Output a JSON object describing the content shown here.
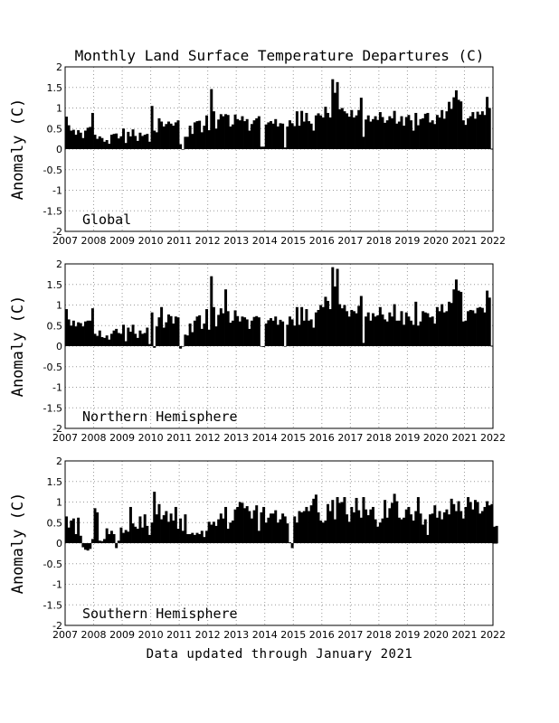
{
  "title": "Monthly Land Surface Temperature Departures (C)",
  "footer": "Data updated through January 2021",
  "chart_data": [
    {
      "type": "bar",
      "region_label": "Global",
      "ylabel": "Anomaly (C)",
      "ylim": [
        -2,
        2
      ],
      "xlim": [
        2007,
        2022
      ],
      "yticks": [
        "2",
        "1.5",
        "1",
        "0.5",
        "0",
        "-0.5",
        "-1",
        "-1.5",
        "-2"
      ],
      "xticks": [
        "2007",
        "2008",
        "2009",
        "2010",
        "2011",
        "2012",
        "2013",
        "2014",
        "2015",
        "2016",
        "2017",
        "2018",
        "2019",
        "2020",
        "2021",
        "2022"
      ],
      "grid": true,
      "x_start": "2007-01",
      "frequency": "monthly",
      "values": [
        0.79,
        0.58,
        0.45,
        0.47,
        0.35,
        0.46,
        0.4,
        0.27,
        0.45,
        0.52,
        0.54,
        0.88,
        0.35,
        0.25,
        0.31,
        0.27,
        0.18,
        0.22,
        0.13,
        0.35,
        0.37,
        0.38,
        0.26,
        0.31,
        0.5,
        0.15,
        0.42,
        0.31,
        0.48,
        0.32,
        0.2,
        0.4,
        0.32,
        0.35,
        0.37,
        0.18,
        1.05,
        0.45,
        0.41,
        0.75,
        0.67,
        0.55,
        0.61,
        0.67,
        0.62,
        0.57,
        0.65,
        0.7,
        0.12,
        0.0,
        0.3,
        0.3,
        0.57,
        0.37,
        0.65,
        0.68,
        0.69,
        0.41,
        0.57,
        0.82,
        0.46,
        1.46,
        0.92,
        0.5,
        0.72,
        0.85,
        0.8,
        0.85,
        0.83,
        0.55,
        0.6,
        0.84,
        0.73,
        0.7,
        0.8,
        0.68,
        0.73,
        0.45,
        0.61,
        0.7,
        0.75,
        0.8,
        0.06,
        0.06,
        0.6,
        0.65,
        0.68,
        0.62,
        0.73,
        0.55,
        0.63,
        0.62,
        0.04,
        0.55,
        0.7,
        0.63,
        0.56,
        0.92,
        0.57,
        0.93,
        0.67,
        0.88,
        0.68,
        0.62,
        0.45,
        0.82,
        0.87,
        0.82,
        0.77,
        1.03,
        0.88,
        0.77,
        1.7,
        1.37,
        1.63,
        0.97,
        1.0,
        0.92,
        0.87,
        0.79,
        0.95,
        0.77,
        0.82,
        0.95,
        1.25,
        0.3,
        0.72,
        0.82,
        0.67,
        0.73,
        0.8,
        0.71,
        0.9,
        0.78,
        0.64,
        0.7,
        0.8,
        0.75,
        0.93,
        0.62,
        0.67,
        0.8,
        0.57,
        0.78,
        0.83,
        0.7,
        0.45,
        0.88,
        0.58,
        0.73,
        0.75,
        0.86,
        0.88,
        0.65,
        0.7,
        0.61,
        0.83,
        0.77,
        0.95,
        0.74,
        0.92,
        1.15,
        0.98,
        1.26,
        1.43,
        1.2,
        1.16,
        0.7,
        0.59,
        0.75,
        0.8,
        0.9,
        0.74,
        0.91,
        0.84,
        0.92,
        0.83,
        1.27,
        1.0
      ]
    },
    {
      "type": "bar",
      "region_label": "Northern Hemisphere",
      "ylabel": "Anomaly (C)",
      "ylim": [
        -2,
        2
      ],
      "xlim": [
        2007,
        2022
      ],
      "yticks": [
        "2",
        "1.5",
        "1",
        "0.5",
        "0",
        "-0.5",
        "-1",
        "-1.5",
        "-2"
      ],
      "xticks": [
        "2007",
        "2008",
        "2009",
        "2010",
        "2011",
        "2012",
        "2013",
        "2014",
        "2015",
        "2016",
        "2017",
        "2018",
        "2019",
        "2020",
        "2021",
        "2022"
      ],
      "grid": true,
      "x_start": "2007-01",
      "frequency": "monthly",
      "values": [
        0.9,
        0.65,
        0.5,
        0.62,
        0.48,
        0.58,
        0.56,
        0.48,
        0.6,
        0.62,
        0.62,
        0.92,
        0.3,
        0.25,
        0.38,
        0.22,
        0.2,
        0.26,
        0.16,
        0.3,
        0.38,
        0.42,
        0.32,
        0.3,
        0.52,
        0.12,
        0.45,
        0.35,
        0.52,
        0.3,
        0.2,
        0.38,
        0.3,
        0.32,
        0.45,
        0.05,
        0.82,
        -0.04,
        0.48,
        0.7,
        0.95,
        0.45,
        0.58,
        0.77,
        0.73,
        0.55,
        0.72,
        0.7,
        -0.06,
        0.0,
        0.28,
        0.26,
        0.55,
        0.34,
        0.62,
        0.72,
        0.75,
        0.42,
        0.55,
        0.9,
        0.4,
        1.7,
        0.95,
        0.48,
        0.76,
        0.92,
        0.8,
        1.38,
        0.85,
        0.57,
        0.62,
        0.87,
        0.73,
        0.6,
        0.72,
        0.7,
        0.65,
        0.42,
        0.62,
        0.71,
        0.73,
        0.7,
        0.0,
        -0.02,
        0.55,
        0.63,
        0.68,
        0.62,
        0.72,
        0.52,
        0.64,
        0.6,
        0.0,
        0.52,
        0.72,
        0.65,
        0.5,
        0.95,
        0.52,
        0.95,
        0.62,
        0.9,
        0.62,
        0.65,
        0.45,
        0.82,
        0.88,
        1.0,
        0.95,
        1.2,
        1.1,
        0.9,
        1.92,
        1.45,
        1.88,
        1.02,
        0.92,
        1.0,
        0.85,
        0.72,
        0.88,
        0.85,
        0.8,
        0.98,
        1.22,
        0.08,
        0.72,
        0.82,
        0.62,
        0.8,
        0.72,
        0.75,
        0.95,
        0.77,
        0.65,
        0.6,
        0.82,
        0.72,
        1.02,
        0.62,
        0.62,
        0.85,
        0.52,
        0.82,
        0.72,
        0.62,
        0.52,
        1.08,
        0.5,
        0.6,
        0.85,
        0.82,
        0.8,
        0.7,
        0.72,
        0.55,
        0.95,
        0.85,
        1.02,
        0.82,
        0.85,
        1.08,
        1.05,
        1.38,
        1.62,
        1.35,
        1.32,
        0.6,
        0.62,
        0.85,
        0.88,
        0.87,
        0.8,
        0.93,
        0.95,
        0.93,
        0.82,
        1.35,
        1.18
      ]
    },
    {
      "type": "bar",
      "region_label": "Southern Hemisphere",
      "ylabel": "Anomaly (C)",
      "ylim": [
        -2,
        2
      ],
      "xlim": [
        2007,
        2022
      ],
      "yticks": [
        "2",
        "1.5",
        "1",
        "0.5",
        "0",
        "-0.5",
        "-1",
        "-1.5",
        "-2"
      ],
      "xticks": [
        "2007",
        "2008",
        "2009",
        "2010",
        "2011",
        "2012",
        "2013",
        "2014",
        "2015",
        "2016",
        "2017",
        "2018",
        "2019",
        "2020",
        "2021",
        "2022"
      ],
      "grid": true,
      "x_start": "2007-01",
      "frequency": "monthly",
      "values": [
        0.65,
        0.38,
        0.55,
        0.6,
        0.22,
        0.62,
        0.18,
        -0.1,
        -0.16,
        -0.18,
        -0.14,
        0.1,
        0.85,
        0.75,
        0.06,
        0.05,
        0.1,
        0.36,
        0.22,
        0.3,
        0.22,
        -0.12,
        0.06,
        0.38,
        0.25,
        0.32,
        0.28,
        0.88,
        0.48,
        0.4,
        0.35,
        0.65,
        0.38,
        0.7,
        0.42,
        0.2,
        0.5,
        1.25,
        0.7,
        0.95,
        0.58,
        0.68,
        0.78,
        0.52,
        0.72,
        0.55,
        0.88,
        0.35,
        0.6,
        0.3,
        0.7,
        0.22,
        0.22,
        0.25,
        0.2,
        0.25,
        0.22,
        0.3,
        0.15,
        0.3,
        0.52,
        0.45,
        0.52,
        0.42,
        0.58,
        0.72,
        0.6,
        0.88,
        0.35,
        0.5,
        0.55,
        0.82,
        0.88,
        1.0,
        0.98,
        0.85,
        0.9,
        0.78,
        0.6,
        0.8,
        0.92,
        0.3,
        0.75,
        0.88,
        0.5,
        0.62,
        0.72,
        0.72,
        0.8,
        0.5,
        0.58,
        0.72,
        0.65,
        0.48,
        0.02,
        -0.12,
        0.65,
        0.5,
        0.78,
        0.75,
        0.78,
        0.88,
        0.78,
        0.92,
        1.08,
        1.18,
        0.75,
        0.55,
        0.5,
        0.55,
        0.95,
        0.78,
        1.05,
        0.58,
        1.12,
        0.98,
        1.0,
        1.12,
        0.7,
        0.52,
        0.88,
        0.75,
        1.1,
        0.8,
        0.62,
        1.12,
        0.82,
        0.68,
        0.82,
        0.88,
        0.58,
        0.4,
        0.5,
        0.6,
        1.05,
        0.62,
        0.85,
        0.98,
        1.2,
        1.02,
        0.62,
        0.58,
        0.62,
        0.82,
        0.88,
        0.7,
        0.55,
        0.78,
        1.12,
        0.72,
        0.45,
        0.58,
        0.2,
        0.7,
        0.72,
        0.92,
        0.62,
        0.78,
        0.58,
        0.75,
        0.82,
        0.7,
        1.08,
        0.95,
        0.78,
        1.02,
        0.78,
        0.6,
        0.88,
        1.12,
        1.0,
        0.82,
        1.05,
        1.0,
        0.72,
        0.78,
        0.88,
        1.02,
        0.92,
        0.95,
        0.4,
        0.42
      ]
    }
  ]
}
